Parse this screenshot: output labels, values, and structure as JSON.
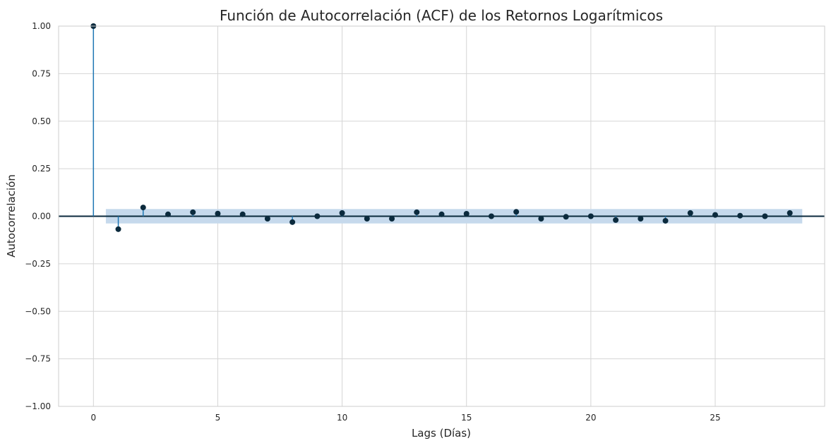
{
  "chart_data": {
    "type": "scatter",
    "subtype": "stem",
    "title": "Función de Autocorrelación (ACF) de los Retornos Logarítmicos",
    "xlabel": "Lags (Días)",
    "ylabel": "Autocorrelación",
    "xlim": [
      -1.4,
      29.4
    ],
    "ylim": [
      -1.0,
      1.0
    ],
    "xticks": [
      0,
      5,
      10,
      15,
      20,
      25
    ],
    "xtick_labels": [
      "0",
      "5",
      "10",
      "15",
      "20",
      "25"
    ],
    "yticks": [
      -1.0,
      -0.75,
      -0.5,
      -0.25,
      0.0,
      0.25,
      0.5,
      0.75,
      1.0
    ],
    "ytick_labels": [
      "−1.00",
      "−0.75",
      "−0.50",
      "−0.25",
      "0.00",
      "0.25",
      "0.50",
      "0.75",
      "1.00"
    ],
    "grid": true,
    "confidence_band": {
      "x_start": 0.5,
      "x_end": 28.5,
      "half_width": 0.038
    },
    "series": [
      {
        "x": [
          0,
          1,
          2,
          3,
          4,
          5,
          6,
          7,
          8,
          9,
          10,
          11,
          12,
          13,
          14,
          15,
          16,
          17,
          18,
          19,
          20,
          21,
          22,
          23,
          24,
          25,
          26,
          27,
          28
        ],
        "values": [
          1.0,
          -0.068,
          0.046,
          0.01,
          0.021,
          0.014,
          0.01,
          -0.013,
          -0.031,
          0.0,
          0.017,
          -0.013,
          -0.013,
          0.021,
          0.01,
          0.013,
          0.0,
          0.023,
          -0.013,
          -0.003,
          0.0,
          -0.02,
          -0.013,
          -0.024,
          0.017,
          0.007,
          0.003,
          0.0,
          0.017
        ]
      }
    ],
    "colors": {
      "stem": "#1f77b4",
      "marker": "#0b2a3d",
      "zero_line": "#0b2a3d",
      "band": "#c6d9ec",
      "grid": "#d5d5d5",
      "axes_edge": "#cccccc",
      "text": "#262626"
    }
  }
}
